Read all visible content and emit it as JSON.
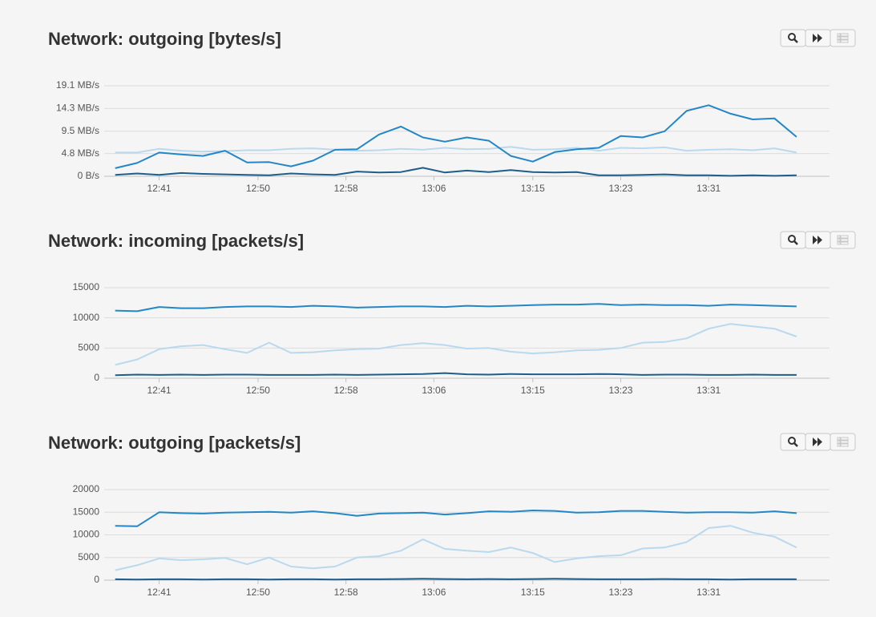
{
  "chart_data": [
    {
      "type": "line",
      "title": "Network: outgoing [bytes/s]",
      "x": [
        "12:37",
        "12:39",
        "12:41",
        "12:43",
        "12:45",
        "12:47",
        "12:49",
        "12:51",
        "12:53",
        "12:55",
        "12:57",
        "12:59",
        "13:01",
        "13:03",
        "13:05",
        "13:07",
        "13:09",
        "13:11",
        "13:13",
        "13:15",
        "13:17",
        "13:19",
        "13:21",
        "13:23",
        "13:25",
        "13:27",
        "13:29",
        "13:31",
        "13:33",
        "13:35",
        "13:37",
        "13:39"
      ],
      "xlim": [
        "12:36",
        "13:42"
      ],
      "xticks": [
        "12:41",
        "12:50",
        "12:58",
        "13:06",
        "13:15",
        "13:23",
        "13:31"
      ],
      "ylim": [
        0,
        19.1
      ],
      "yticks": [
        {
          "value": 0,
          "label": "0 B/s"
        },
        {
          "value": 4.8,
          "label": "4.8 MB/s"
        },
        {
          "value": 9.5,
          "label": "9.5 MB/s"
        },
        {
          "value": 14.3,
          "label": "14.3 MB/s"
        },
        {
          "value": 19.1,
          "label": "19.1 MB/s"
        }
      ],
      "grid": true,
      "series": [
        {
          "color": "#b9d9ee",
          "values": [
            5.0,
            5.0,
            5.8,
            5.4,
            5.2,
            5.3,
            5.5,
            5.5,
            5.8,
            5.9,
            5.6,
            5.4,
            5.5,
            5.8,
            5.6,
            6.0,
            5.7,
            5.8,
            6.2,
            5.6,
            5.7,
            6.0,
            5.4,
            6.0,
            5.9,
            6.1,
            5.4,
            5.6,
            5.7,
            5.5,
            5.9,
            5.0
          ]
        },
        {
          "color": "#1d5f8a",
          "values": [
            0.3,
            0.6,
            0.3,
            0.7,
            0.5,
            0.4,
            0.3,
            0.2,
            0.6,
            0.4,
            0.3,
            1.0,
            0.8,
            0.9,
            1.8,
            0.8,
            1.2,
            0.9,
            1.3,
            0.9,
            0.8,
            0.9,
            0.2,
            0.2,
            0.3,
            0.4,
            0.2,
            0.2,
            0.1,
            0.2,
            0.1,
            0.2
          ]
        },
        {
          "color": "#2387c7",
          "values": [
            1.7,
            2.8,
            5.0,
            4.6,
            4.3,
            5.4,
            2.9,
            3.0,
            2.1,
            3.3,
            5.6,
            5.7,
            8.8,
            10.5,
            8.2,
            7.3,
            8.2,
            7.5,
            4.3,
            3.1,
            5.1,
            5.7,
            6.0,
            8.5,
            8.2,
            9.5,
            13.8,
            15.0,
            13.2,
            12.0,
            12.2,
            8.3
          ]
        }
      ]
    },
    {
      "type": "line",
      "title": "Network: incoming [packets/s]",
      "x": [
        "12:37",
        "12:39",
        "12:41",
        "12:43",
        "12:45",
        "12:47",
        "12:49",
        "12:51",
        "12:53",
        "12:55",
        "12:57",
        "12:59",
        "13:01",
        "13:03",
        "13:05",
        "13:07",
        "13:09",
        "13:11",
        "13:13",
        "13:15",
        "13:17",
        "13:19",
        "13:21",
        "13:23",
        "13:25",
        "13:27",
        "13:29",
        "13:31",
        "13:33",
        "13:35",
        "13:37",
        "13:39"
      ],
      "xlim": [
        "12:36",
        "13:42"
      ],
      "xticks": [
        "12:41",
        "12:50",
        "12:58",
        "13:06",
        "13:15",
        "13:23",
        "13:31"
      ],
      "ylim": [
        0,
        15000
      ],
      "yticks": [
        0,
        5000,
        10000,
        15000
      ],
      "grid": true,
      "series": [
        {
          "color": "#b9d9ee",
          "values": [
            2200,
            3100,
            4800,
            5300,
            5500,
            4800,
            4200,
            5900,
            4200,
            4300,
            4600,
            4800,
            4900,
            5500,
            5800,
            5500,
            4900,
            5000,
            4400,
            4100,
            4300,
            4600,
            4700,
            5000,
            5900,
            6000,
            6600,
            8200,
            9000,
            8600,
            8200,
            6900
          ]
        },
        {
          "color": "#1d5f8a",
          "values": [
            500,
            600,
            550,
            600,
            550,
            600,
            600,
            550,
            550,
            550,
            600,
            550,
            600,
            650,
            700,
            850,
            650,
            600,
            700,
            650,
            650,
            650,
            700,
            650,
            550,
            600,
            600,
            550,
            550,
            600,
            550,
            550
          ]
        },
        {
          "color": "#2387c7",
          "values": [
            11200,
            11100,
            11800,
            11600,
            11600,
            11800,
            11900,
            11900,
            11800,
            12000,
            11900,
            11700,
            11800,
            11900,
            11900,
            11800,
            12000,
            11900,
            12000,
            12100,
            12200,
            12200,
            12300,
            12100,
            12200,
            12100,
            12100,
            12000,
            12200,
            12100,
            12000,
            11900
          ]
        }
      ]
    },
    {
      "type": "line",
      "title": "Network: outgoing [packets/s]",
      "x": [
        "12:37",
        "12:39",
        "12:41",
        "12:43",
        "12:45",
        "12:47",
        "12:49",
        "12:51",
        "12:53",
        "12:55",
        "12:57",
        "12:59",
        "13:01",
        "13:03",
        "13:05",
        "13:07",
        "13:09",
        "13:11",
        "13:13",
        "13:15",
        "13:17",
        "13:19",
        "13:21",
        "13:23",
        "13:25",
        "13:27",
        "13:29",
        "13:31",
        "13:33",
        "13:35",
        "13:37",
        "13:39"
      ],
      "xlim": [
        "12:36",
        "13:42"
      ],
      "xticks": [
        "12:41",
        "12:50",
        "12:58",
        "13:06",
        "13:15",
        "13:23",
        "13:31"
      ],
      "ylim": [
        0,
        20000
      ],
      "yticks": [
        0,
        5000,
        10000,
        15000,
        20000
      ],
      "grid": true,
      "series": [
        {
          "color": "#b9d9ee",
          "values": [
            2200,
            3300,
            4800,
            4400,
            4600,
            4900,
            3500,
            5000,
            3000,
            2600,
            3000,
            5000,
            5300,
            6500,
            9000,
            6900,
            6500,
            6200,
            7200,
            6000,
            4000,
            4800,
            5300,
            5500,
            7000,
            7200,
            8400,
            11500,
            12000,
            10500,
            9600,
            7200
          ]
        },
        {
          "color": "#1d5f8a",
          "values": [
            200,
            150,
            200,
            200,
            150,
            200,
            200,
            150,
            200,
            200,
            150,
            200,
            200,
            250,
            300,
            250,
            200,
            250,
            200,
            250,
            300,
            250,
            200,
            200,
            200,
            250,
            200,
            200,
            150,
            200,
            200,
            200
          ]
        },
        {
          "color": "#2387c7",
          "values": [
            12000,
            11900,
            15000,
            14800,
            14700,
            14900,
            15000,
            15100,
            14900,
            15200,
            14800,
            14200,
            14700,
            14800,
            14900,
            14500,
            14800,
            15200,
            15100,
            15400,
            15300,
            14900,
            15000,
            15300,
            15300,
            15100,
            14900,
            15000,
            15000,
            14900,
            15200,
            14800
          ]
        }
      ]
    }
  ]
}
